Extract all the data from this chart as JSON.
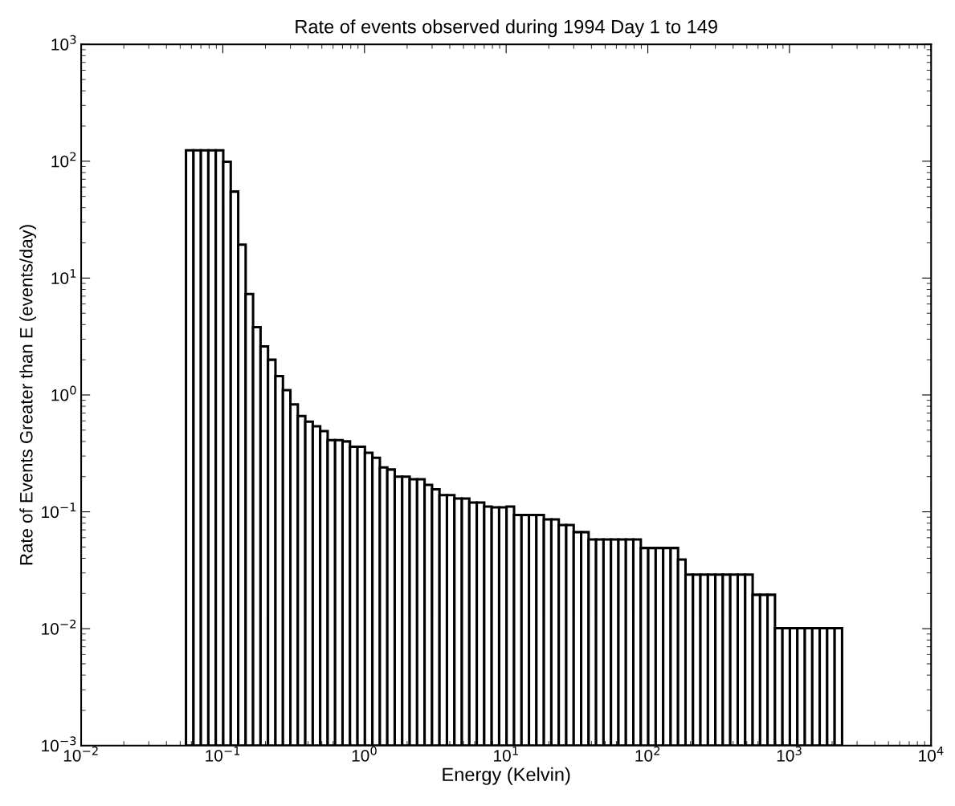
{
  "chart_data": {
    "type": "histogram",
    "title": "Rate of events observed during 1994 Day 1 to 149",
    "xlabel": "Energy (Kelvin)",
    "ylabel": "Rate of Events Greater than E (events/day)",
    "log": "xy",
    "grid": false,
    "color": "#ffffff",
    "bins": [
      0.05495,
      0.06204,
      0.07001,
      0.07902,
      0.08924,
      0.1007,
      0.1137,
      0.1284,
      0.1449,
      0.1635,
      0.1846,
      0.2084,
      0.2352,
      0.2656,
      0.2998,
      0.3384,
      0.382,
      0.4313,
      0.4868,
      0.5495,
      0.6204,
      0.7001,
      0.7902,
      0.8924,
      1.007,
      1.137,
      1.284,
      1.449,
      1.635,
      1.846,
      2.084,
      2.352,
      2.656,
      2.998,
      3.384,
      3.82,
      4.313,
      4.868,
      5.495,
      6.204,
      7.001,
      7.902,
      8.924,
      10.07,
      11.37,
      12.84,
      14.49,
      16.35,
      18.46,
      20.84,
      23.52,
      26.56,
      29.98,
      33.84,
      38.2,
      43.13,
      48.68,
      54.95,
      62.04,
      70.01,
      79.02,
      89.24,
      100.7,
      113.7,
      128.4,
      144.9,
      163.5,
      184.6,
      208.4,
      235.2,
      265.6,
      299.8,
      338.4,
      382,
      431.3,
      486.8,
      549.5,
      620.4,
      700.1,
      790.2,
      892.4,
      1007,
      1137,
      1284,
      1449,
      1635,
      1846,
      2084,
      2352
    ],
    "values": [
      124,
      124,
      124,
      124,
      124,
      99,
      55,
      19.3,
      7.3,
      3.8,
      2.6,
      2.0,
      1.45,
      1.1,
      0.83,
      0.66,
      0.59,
      0.54,
      0.49,
      0.41,
      0.41,
      0.4,
      0.36,
      0.36,
      0.32,
      0.29,
      0.24,
      0.23,
      0.2,
      0.2,
      0.19,
      0.19,
      0.17,
      0.156,
      0.139,
      0.139,
      0.13,
      0.13,
      0.12,
      0.12,
      0.111,
      0.109,
      0.109,
      0.111,
      0.094,
      0.094,
      0.094,
      0.094,
      0.086,
      0.086,
      0.077,
      0.077,
      0.067,
      0.067,
      0.058,
      0.058,
      0.058,
      0.058,
      0.058,
      0.058,
      0.058,
      0.049,
      0.049,
      0.049,
      0.049,
      0.049,
      0.039,
      0.029,
      0.029,
      0.029,
      0.029,
      0.029,
      0.029,
      0.029,
      0.029,
      0.029,
      0.0195,
      0.0195,
      0.0195,
      0.0101,
      0.0101,
      0.0101,
      0.0101,
      0.0101,
      0.0101,
      0.0101,
      0.0101,
      0.0101
    ],
    "xlim": [
      0.01,
      10000
    ],
    "ylim": [
      0.001,
      1000
    ],
    "xticks": [
      {
        "value": 0.01,
        "label": "10$^{−2}$"
      },
      {
        "value": 0.1,
        "label": "10$^{−1}$"
      },
      {
        "value": 1,
        "label": "10$^{0}$"
      },
      {
        "value": 10,
        "label": "10$^{1}$"
      },
      {
        "value": 100,
        "label": "10$^{2}$"
      },
      {
        "value": 1000,
        "label": "10$^{3}$"
      },
      {
        "value": 10000,
        "label": "10$^{4}$"
      }
    ],
    "yticks": [
      {
        "value": 0.001,
        "label": "10$^{−3}$"
      },
      {
        "value": 0.01,
        "label": "10$^{−2}$"
      },
      {
        "value": 0.1,
        "label": "10$^{−1}$"
      },
      {
        "value": 1,
        "label": "10$^{0}$"
      },
      {
        "value": 10,
        "label": "10$^{1}$"
      },
      {
        "value": 100,
        "label": "10$^{2}$"
      },
      {
        "value": 1000,
        "label": "10$^{3}$"
      }
    ]
  }
}
